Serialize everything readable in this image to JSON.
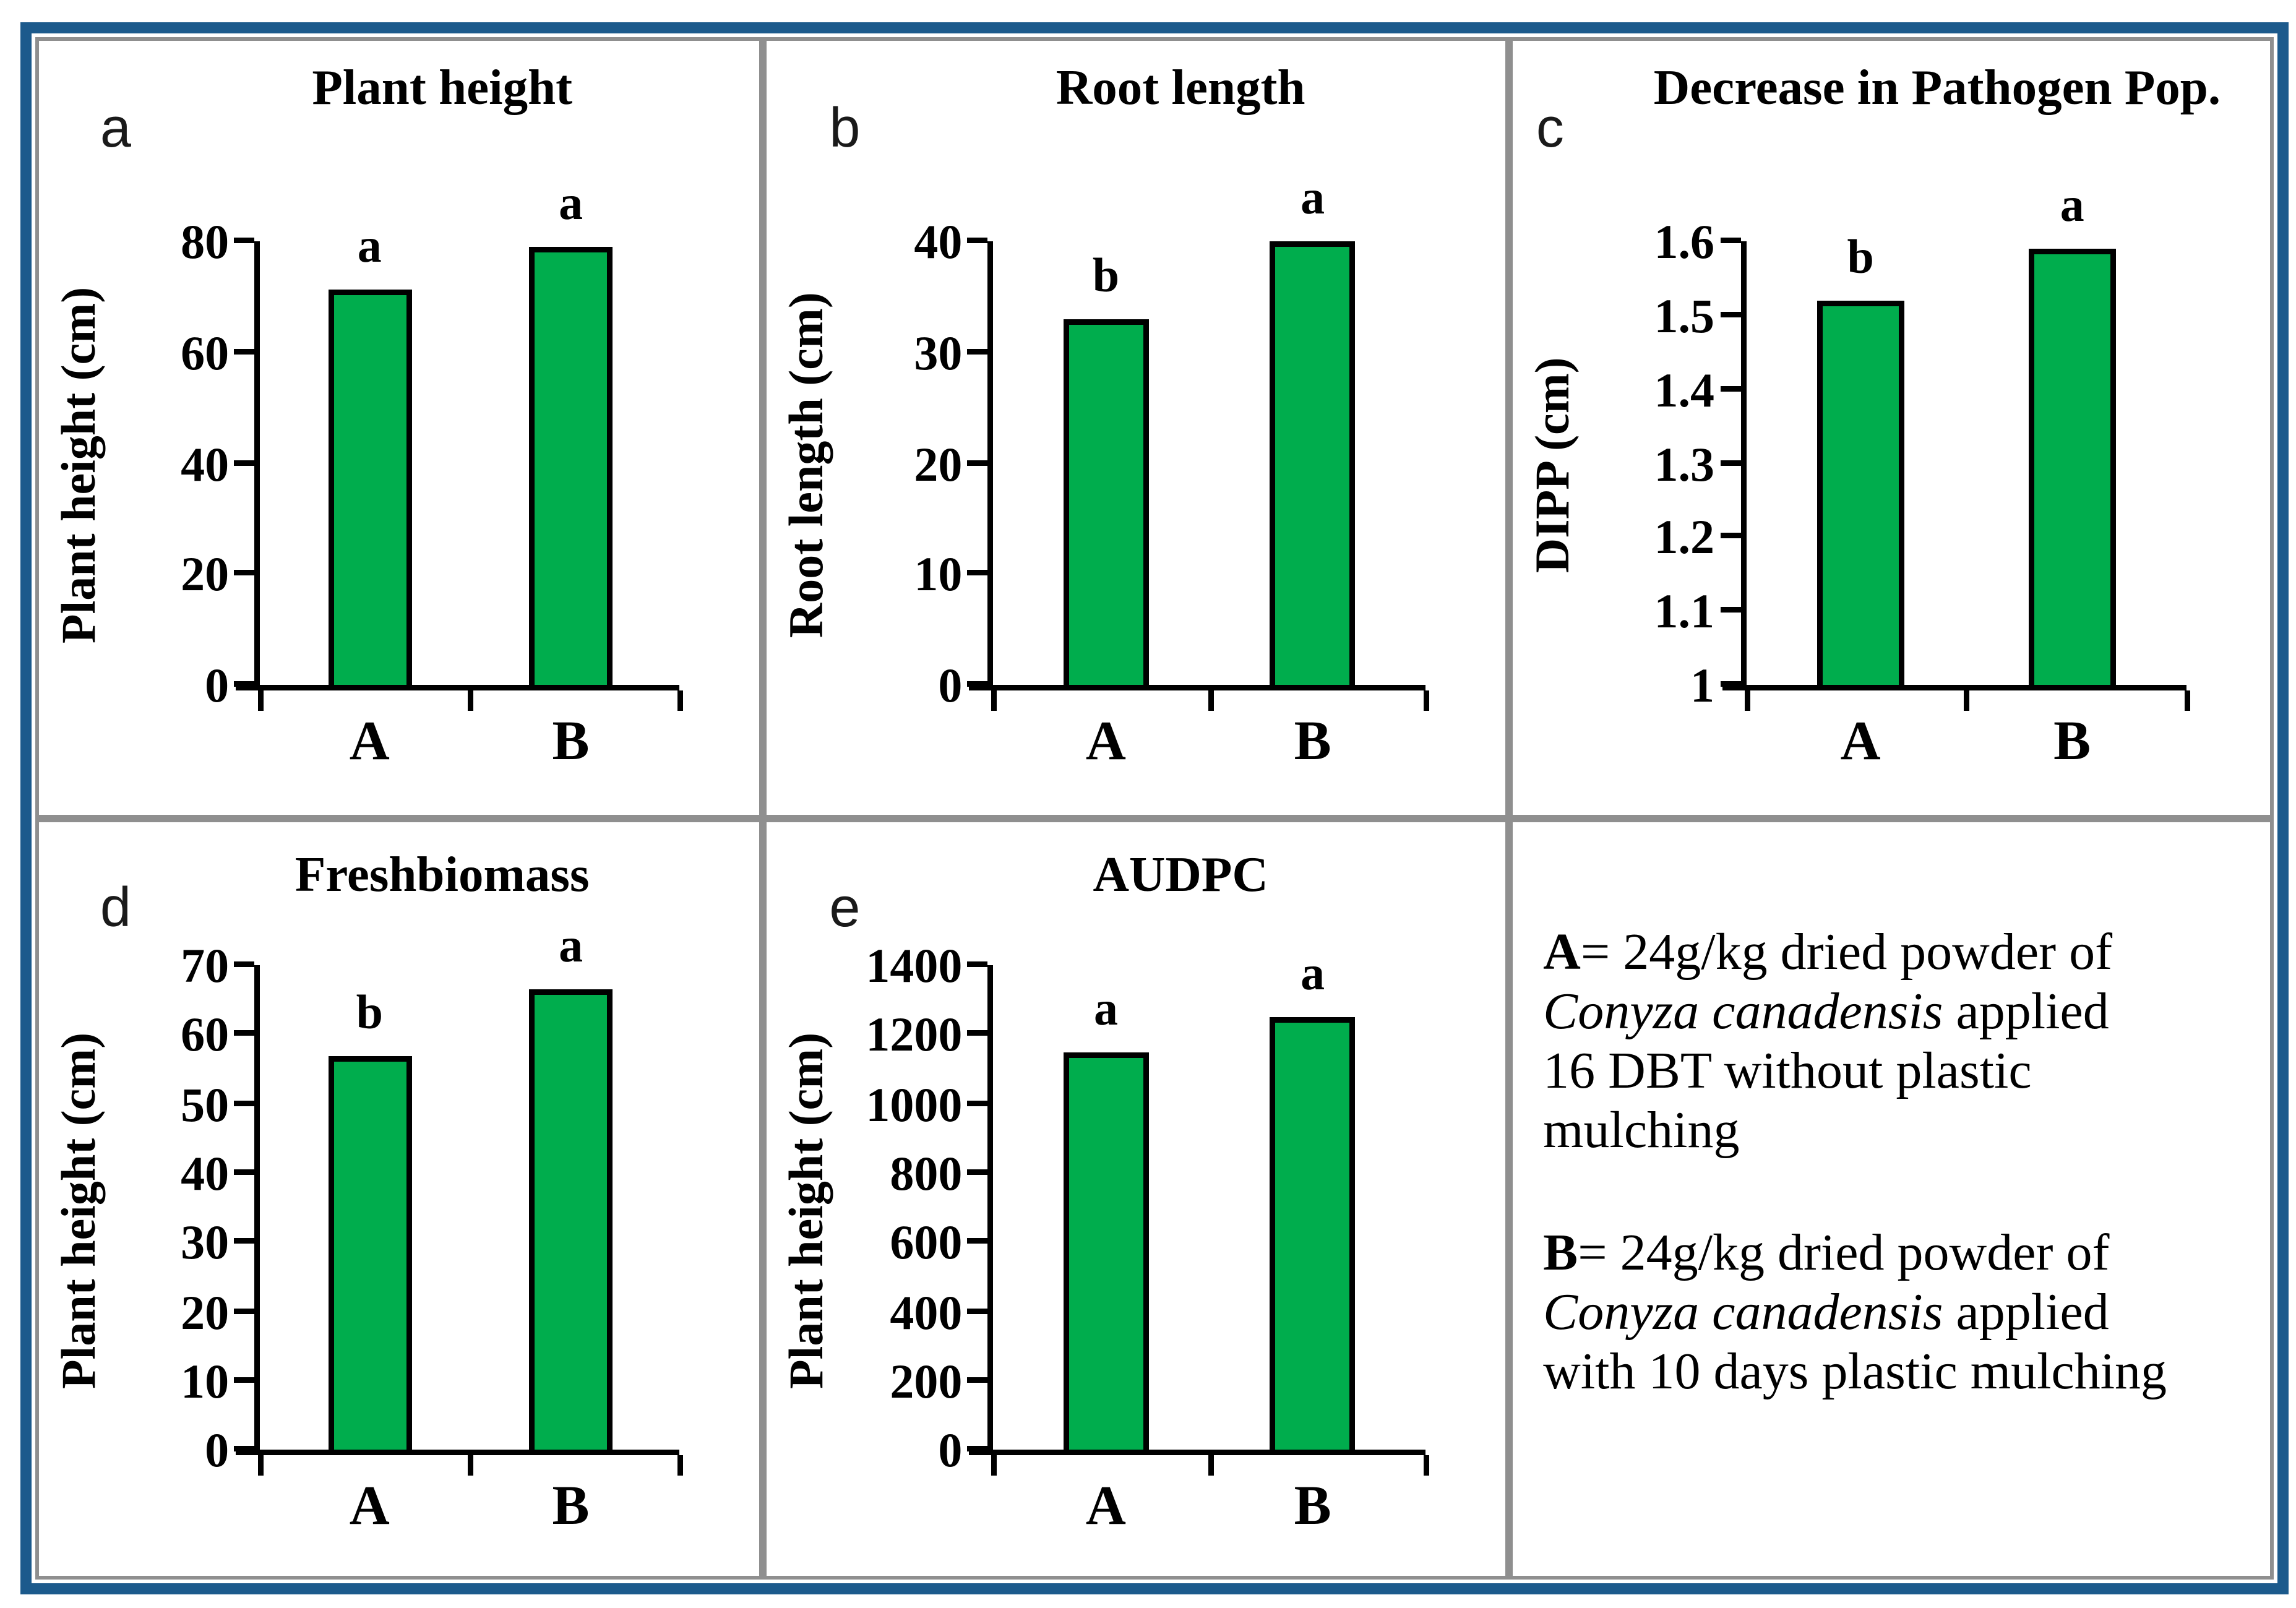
{
  "figure": {
    "frame_color": "#1C5A8C",
    "panel_border_color": "#8F8F8F",
    "bar_fill": "#00AD4D",
    "bar_border": "#000000"
  },
  "chart_data": [
    {
      "type": "bar",
      "panel_letter": "a",
      "title": "Plant height",
      "ylabel": "Plant height (cm)",
      "xlabel": "",
      "categories": [
        "A",
        "B"
      ],
      "values": [
        71.5,
        79
      ],
      "sig_labels": [
        "a",
        "a"
      ],
      "ylim": [
        0,
        80
      ],
      "yticks": [
        "0",
        "20",
        "40",
        "60",
        "80"
      ],
      "grid": false,
      "legend_position": "none"
    },
    {
      "type": "bar",
      "panel_letter": "b",
      "title": "Root length",
      "ylabel": "Root length (cm)",
      "xlabel": "",
      "categories": [
        "A",
        "B"
      ],
      "values": [
        33,
        40
      ],
      "sig_labels": [
        "b",
        "a"
      ],
      "ylim": [
        0,
        40
      ],
      "yticks": [
        "0",
        "10",
        "20",
        "30",
        "40"
      ],
      "grid": false,
      "legend_position": "none"
    },
    {
      "type": "bar",
      "panel_letter": "c",
      "title": "Decrease in Pathogen Pop.",
      "ylabel": "DIPP (cm)",
      "xlabel": "",
      "categories": [
        "A",
        "B"
      ],
      "values": [
        1.52,
        1.59
      ],
      "sig_labels": [
        "b",
        "a"
      ],
      "ylim": [
        1,
        1.6
      ],
      "yticks": [
        "1",
        "1.1",
        "1.2",
        "1.3",
        "1.4",
        "1.5",
        "1.6"
      ],
      "grid": false,
      "legend_position": "none"
    },
    {
      "type": "bar",
      "panel_letter": "d",
      "title": "Freshbiomass",
      "ylabel": "Plant height (cm)",
      "xlabel": "",
      "categories": [
        "A",
        "B"
      ],
      "values": [
        57,
        66.5
      ],
      "sig_labels": [
        "b",
        "a"
      ],
      "ylim": [
        0,
        70
      ],
      "yticks": [
        "0",
        "10",
        "20",
        "30",
        "40",
        "50",
        "60",
        "70"
      ],
      "grid": false,
      "legend_position": "none"
    },
    {
      "type": "bar",
      "panel_letter": "e",
      "title": "AUDPC",
      "ylabel": "Plant height (cm)",
      "xlabel": "",
      "categories": [
        "A",
        "B"
      ],
      "values": [
        1150,
        1250
      ],
      "sig_labels": [
        "a",
        "a"
      ],
      "ylim": [
        0,
        1400
      ],
      "yticks": [
        "0",
        "200",
        "400",
        "600",
        "800",
        "1000",
        "1200",
        "1400"
      ],
      "grid": false,
      "legend_position": "none"
    }
  ],
  "legend": {
    "lines": [
      [
        {
          "t": "A",
          "b": true
        },
        {
          "t": "= 24g/kg dried powder of"
        }
      ],
      [
        {
          "t": "Conyza canadensis",
          "i": true
        },
        {
          "t": " applied"
        }
      ],
      [
        {
          "t": "16 DBT without  plastic"
        }
      ],
      [
        {
          "t": "mulching"
        }
      ],
      null,
      [
        {
          "t": "B",
          "b": true
        },
        {
          "t": "= 24g/kg dried powder of"
        }
      ],
      [
        {
          "t": "Conyza canadensis",
          "i": true
        },
        {
          "t": " applied"
        }
      ],
      [
        {
          "t": "with 10 days plastic  mulching"
        }
      ]
    ]
  }
}
